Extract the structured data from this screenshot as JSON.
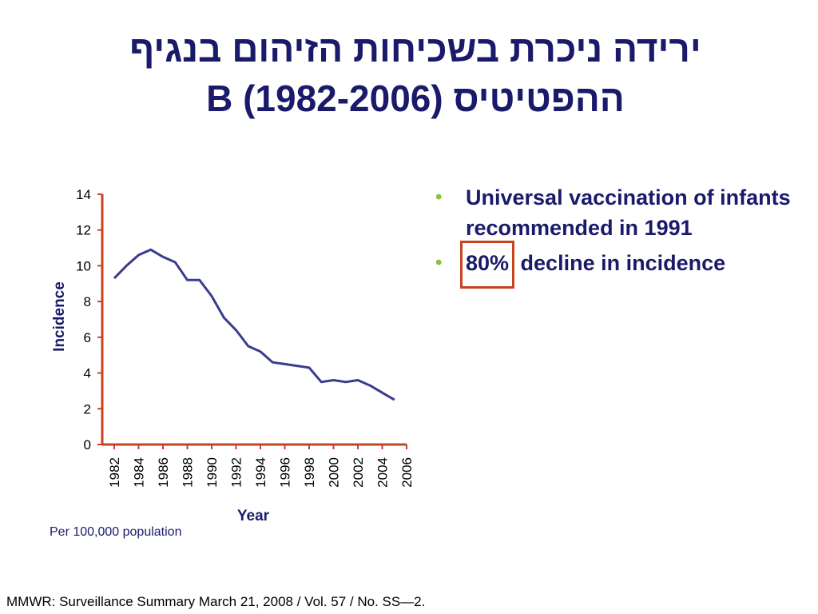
{
  "slide": {
    "title_line1": "ירידה ניכרת בשכיחות הזיהום  בנגיף",
    "title_line2": "ההפטיטיס B (1982-2006)",
    "bullets": [
      {
        "text": "Universal vaccination of infants recommended in 1991"
      },
      {
        "highlight": "80%",
        "text": " decline in incidence"
      }
    ],
    "note": "Per 100,000 population",
    "source": "MMWR: Surveillance Summary March 21, 2008 / Vol. 57 / No. SS—2."
  },
  "colors": {
    "title": "#1a1a6b",
    "series": "#3b3b8f",
    "axis": "#c7431f",
    "bullet": "#8ac33c",
    "highlight_box": "#c7431f"
  },
  "chart_data": {
    "type": "line",
    "xlabel": "Year",
    "ylabel": "Incidence",
    "xlim": [
      1982,
      2006
    ],
    "ylim": [
      0,
      14
    ],
    "x_ticks": [
      1982,
      1984,
      1986,
      1988,
      1990,
      1992,
      1994,
      1996,
      1998,
      2000,
      2002,
      2004,
      2006
    ],
    "y_ticks": [
      0,
      2,
      4,
      6,
      8,
      10,
      12,
      14
    ],
    "grid": false,
    "series": [
      {
        "x": [
          1982,
          1983,
          1984,
          1985,
          1986,
          1987,
          1988,
          1989,
          1990,
          1991,
          1992,
          1993,
          1994,
          1995,
          1996,
          1997,
          1998,
          1999,
          2000,
          2001,
          2002,
          2003,
          2004,
          2005
        ],
        "values": [
          9.3,
          10.0,
          10.6,
          10.9,
          10.5,
          10.2,
          9.2,
          9.2,
          8.3,
          7.1,
          6.4,
          5.5,
          5.2,
          4.6,
          4.5,
          4.4,
          4.3,
          3.5,
          3.6,
          3.5,
          3.6,
          3.3,
          2.9,
          2.5
        ]
      }
    ]
  }
}
